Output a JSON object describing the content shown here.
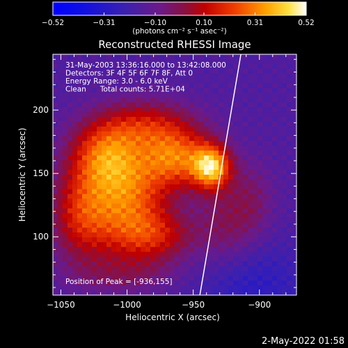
{
  "chart_data": {
    "type": "heatmap",
    "title": "Reconstructed RHESSI Image",
    "xlabel": "Heliocentric X (arcsec)",
    "ylabel": "Heliocentric Y (arcsec)",
    "xlim": [
      -1056,
      -872
    ],
    "ylim": [
      54,
      244
    ],
    "x_ticks": [
      -1050,
      -1000,
      -950,
      -900
    ],
    "x_tick_labels": [
      "−1050",
      "−1000",
      "−950",
      "−900"
    ],
    "y_ticks": [
      100,
      150,
      200
    ],
    "y_tick_labels": [
      "100",
      "150",
      "200"
    ],
    "colorbar": {
      "min": -0.52,
      "max": 0.52,
      "ticks": [
        -0.52,
        -0.31,
        -0.1,
        0.1,
        0.31,
        0.52
      ],
      "tick_labels": [
        "−0.52",
        "−0.31",
        "−0.10",
        "0.10",
        "0.31",
        "0.52"
      ],
      "units_label": "(photons cm⁻² s⁻¹ asec⁻²)"
    },
    "annotations": [
      "31-May-2003 13:36:16.000 to 13:42:08.000",
      "Detectors: 3F 4F 5F 6F 7F 8F, Att 0",
      "Energy Range: 3.0 - 6.0 keV",
      "Clean      Total counts: 5.71E+04"
    ],
    "peak_label": "Position of Peak = [-936,155]",
    "peak_position": [
      -936,
      155
    ],
    "limb_line": {
      "x": [
        -945,
        -914
      ],
      "y": [
        54,
        244
      ]
    },
    "sources": [
      {
        "x": -1000,
        "y": 132,
        "peak": 0.42,
        "sx": 22,
        "sy": 30
      },
      {
        "x": -1018,
        "y": 165,
        "peak": 0.3,
        "sx": 18,
        "sy": 18
      },
      {
        "x": -962,
        "y": 162,
        "peak": 0.38,
        "sx": 18,
        "sy": 16
      },
      {
        "x": -936,
        "y": 155,
        "peak": 0.52,
        "sx": 10,
        "sy": 12
      },
      {
        "x": -985,
        "y": 188,
        "peak": 0.24,
        "sx": 26,
        "sy": 14
      },
      {
        "x": -1035,
        "y": 118,
        "peak": 0.28,
        "sx": 16,
        "sy": 26
      },
      {
        "x": -978,
        "y": 100,
        "peak": 0.22,
        "sx": 22,
        "sy": 14
      },
      {
        "x": -925,
        "y": 110,
        "peak": 0.14,
        "sx": 16,
        "sy": 24
      },
      {
        "x": -1003,
        "y": 70,
        "peak": 0.1,
        "sx": 30,
        "sy": 10
      },
      {
        "x": -905,
        "y": 130,
        "peak": 0.1,
        "sx": 12,
        "sy": 22
      }
    ]
  },
  "timestamp": "2-May-2022 01:58"
}
